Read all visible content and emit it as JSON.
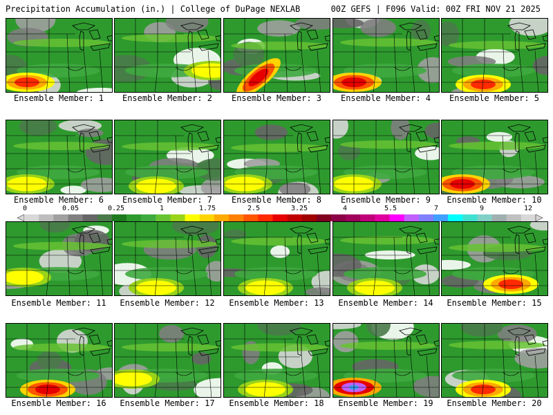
{
  "header": {
    "left": "Precipitation Accumulation (in.) | College of DuPage NEXLAB",
    "right": "00Z GEFS | F096 Valid: 00Z FRI NOV 21 2025"
  },
  "colorbar": {
    "labels": [
      "0",
      "0.05",
      "0.25",
      "1",
      "1.75",
      "2.5",
      "3.25",
      "4",
      "5.5",
      "7",
      "9",
      "12"
    ],
    "colors": [
      "#d8d8d8",
      "#bdbdbd",
      "#a0a0a0",
      "#808080",
      "#666666",
      "#4a7a4a",
      "#1e7a1e",
      "#2e9a2e",
      "#3faa3f",
      "#66c233",
      "#99d31a",
      "#ffff00",
      "#ffd400",
      "#ffaa00",
      "#ff8000",
      "#ff5500",
      "#ff2a00",
      "#e60000",
      "#c00000",
      "#a00000",
      "#800020",
      "#8b0046",
      "#a0005a",
      "#c0007a",
      "#e000a0",
      "#ff00ff",
      "#c060ff",
      "#8080ff",
      "#40a0ff",
      "#00ffff",
      "#40e0d0",
      "#80d0c8",
      "#a0b0b0",
      "#c0c0c0",
      "#d8d8d8"
    ]
  },
  "members": [
    {
      "label": "Ensemble Member: 1",
      "hot": "sw",
      "intensity": 2
    },
    {
      "label": "Ensemble Member: 2",
      "hot": "e",
      "intensity": 1
    },
    {
      "label": "Ensemble Member: 3",
      "hot": "swb",
      "intensity": 3
    },
    {
      "label": "Ensemble Member: 4",
      "hot": "sw",
      "intensity": 3
    },
    {
      "label": "Ensemble Member: 5",
      "hot": "s",
      "intensity": 2
    },
    {
      "label": "Ensemble Member: 6",
      "hot": "sw",
      "intensity": 1
    },
    {
      "label": "Ensemble Member: 7",
      "hot": "s",
      "intensity": 1
    },
    {
      "label": "Ensemble Member: 8",
      "hot": "sw",
      "intensity": 1
    },
    {
      "label": "Ensemble Member: 9",
      "hot": "sw",
      "intensity": 1
    },
    {
      "label": "Ensemble Member: 10",
      "hot": "sw",
      "intensity": 3
    },
    {
      "label": "Ensemble Member: 11",
      "hot": "w",
      "intensity": 1
    },
    {
      "label": "Ensemble Member: 12",
      "hot": "s",
      "intensity": 1
    },
    {
      "label": "Ensemble Member: 13",
      "hot": "s",
      "intensity": 1
    },
    {
      "label": "Ensemble Member: 14",
      "hot": "s",
      "intensity": 1
    },
    {
      "label": "Ensemble Member: 15",
      "hot": "se",
      "intensity": 2
    },
    {
      "label": "Ensemble Member: 16",
      "hot": "s",
      "intensity": 3
    },
    {
      "label": "Ensemble Member: 17",
      "hot": "w",
      "intensity": 1
    },
    {
      "label": "Ensemble Member: 18",
      "hot": "s",
      "intensity": 1
    },
    {
      "label": "Ensemble Member: 19",
      "hot": "sw",
      "intensity": 4
    },
    {
      "label": "Ensemble Member: 20",
      "hot": "s",
      "intensity": 2
    }
  ]
}
